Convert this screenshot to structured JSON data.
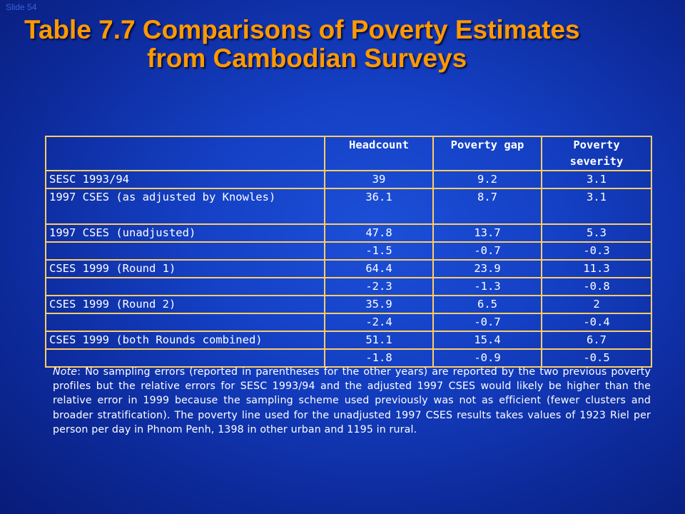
{
  "slide_label": "Slide 54",
  "title": {
    "line1": "Table 7.7 Comparisons of Poverty Estimates",
    "line2": "from Cambodian Surveys"
  },
  "table": {
    "headers": [
      "",
      "Headcount",
      "Poverty gap",
      "Poverty severity"
    ],
    "rows": [
      [
        "SESC 1993/94",
        "39",
        "9.2",
        "3.1"
      ],
      [
        "1997 CSES (as adjusted by Knowles)",
        "36.1",
        "8.7",
        "3.1"
      ],
      [
        "1997 CSES (unadjusted)",
        "47.8",
        "13.7",
        "5.3"
      ],
      [
        "",
        "-1.5",
        "-0.7",
        "-0.3"
      ],
      [
        "CSES 1999 (Round 1)",
        "64.4",
        "23.9",
        "11.3"
      ],
      [
        "",
        "-2.3",
        "-1.3",
        "-0.8"
      ],
      [
        "CSES 1999 (Round 2)",
        "35.9",
        "6.5",
        "2"
      ],
      [
        "",
        "-2.4",
        "-0.7",
        "-0.4"
      ],
      [
        "CSES 1999 (both Rounds combined)",
        "51.1",
        "15.4",
        "6.7"
      ],
      [
        "",
        "-1.8",
        "-0.9",
        "-0.5"
      ]
    ]
  },
  "note": {
    "label": "Note",
    "text": ": No sampling errors (reported in parentheses for the other years) are reported by the two previous poverty profiles but the relative errors for SESC 1993/94 and the adjusted 1997 CSES would likely be higher than the relative error in 1999 because the sampling scheme used previously was not as efficient (fewer clusters and broader stratification).  The poverty line used for the unadjusted 1997 CSES results takes values of 1923 Riel per person per day in Phnom Penh, 1398 in other urban and 1195 in rural."
  }
}
